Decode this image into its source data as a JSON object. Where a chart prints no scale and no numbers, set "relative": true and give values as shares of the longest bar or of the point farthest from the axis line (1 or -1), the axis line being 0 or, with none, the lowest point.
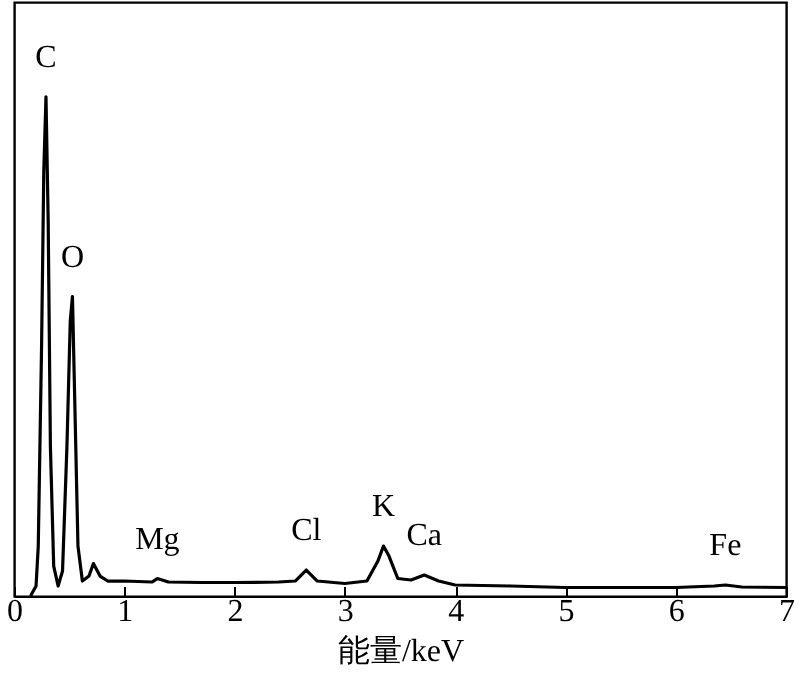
{
  "chart_data": {
    "type": "line",
    "relative": true,
    "xlabel": "能量/keV",
    "xlim": [
      0,
      7
    ],
    "xticks": [
      0,
      1,
      2,
      3,
      4,
      5,
      6,
      7
    ],
    "tick_labels": "x",
    "grid": false,
    "marker": "none",
    "line_style": "solid",
    "x": [
      0.15,
      0.2,
      0.22,
      0.25,
      0.27,
      0.29,
      0.31,
      0.33,
      0.36,
      0.4,
      0.44,
      0.48,
      0.51,
      0.53,
      0.55,
      0.58,
      0.62,
      0.68,
      0.72,
      0.78,
      0.85,
      1.0,
      1.25,
      1.3,
      1.4,
      1.7,
      2.0,
      2.4,
      2.55,
      2.65,
      2.75,
      3.0,
      3.2,
      3.3,
      3.35,
      3.4,
      3.48,
      3.6,
      3.72,
      3.85,
      4.0,
      4.5,
      5.0,
      6.0,
      6.35,
      6.45,
      6.6,
      7.0
    ],
    "series": [
      {
        "color": "#000000",
        "values": [
          0,
          0.02,
          0.1,
          0.5,
          0.85,
          1.0,
          0.75,
          0.3,
          0.06,
          0.02,
          0.05,
          0.3,
          0.55,
          0.6,
          0.4,
          0.1,
          0.03,
          0.04,
          0.065,
          0.04,
          0.03,
          0.03,
          0.028,
          0.035,
          0.028,
          0.027,
          0.027,
          0.028,
          0.03,
          0.052,
          0.03,
          0.025,
          0.03,
          0.07,
          0.1,
          0.08,
          0.035,
          0.032,
          0.042,
          0.03,
          0.022,
          0.02,
          0.017,
          0.017,
          0.02,
          0.022,
          0.018,
          0.017
        ]
      }
    ],
    "annotations": [
      {
        "text": "C",
        "x": 0.29,
        "y": 1.0
      },
      {
        "text": "O",
        "x": 0.53,
        "y": 0.6
      },
      {
        "text": "Mg",
        "x": 1.3,
        "y": 0.035
      },
      {
        "text": "Cl",
        "x": 2.65,
        "y": 0.052
      },
      {
        "text": "K",
        "x": 3.35,
        "y": 0.1
      },
      {
        "text": "Ca",
        "x": 3.72,
        "y": 0.042
      },
      {
        "text": "Fe",
        "x": 6.45,
        "y": 0.022
      }
    ]
  }
}
